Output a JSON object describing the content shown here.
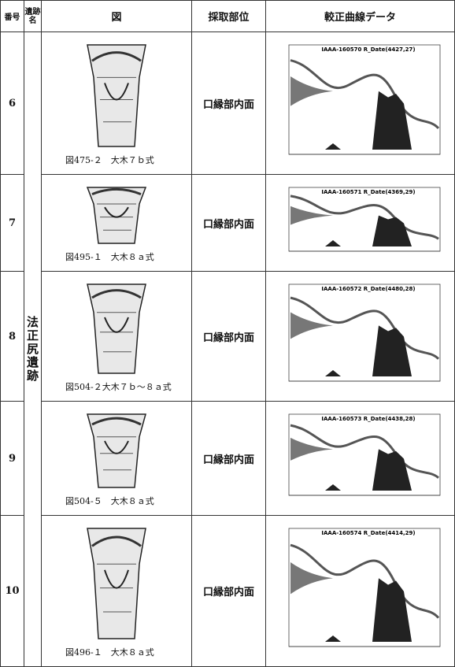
{
  "table": {
    "headers": [
      "番号",
      "遺跡名",
      "図",
      "採取部位",
      "較正曲線データ"
    ],
    "site": "法正尻遺跡",
    "rows": [
      {
        "number": "6",
        "caption": "図475-２　大木７ｂ式",
        "part": "口縁部内面",
        "chart_title": "IAAA-160570 R_Date(4427,27)"
      },
      {
        "number": "7",
        "caption": "図495-１　大木８ａ式",
        "part": "口縁部内面",
        "chart_title": "IAAA-160571 R_Date(4369,29)"
      },
      {
        "number": "8",
        "caption": "図504-２大木７ｂ～８ａ式",
        "part": "口縁部内面",
        "chart_title": "IAAA-160572 R_Date(4480,28)"
      },
      {
        "number": "9",
        "caption": "図504-５　大木８ａ式",
        "part": "口縁部内面",
        "chart_title": "IAAA-160573 R_Date(4438,28)"
      },
      {
        "number": "10",
        "caption": "図496-１　大木８ａ式",
        "part": "口縁部内面",
        "chart_title": "IAAA-160574 R_Date(4414,29)"
      }
    ]
  }
}
